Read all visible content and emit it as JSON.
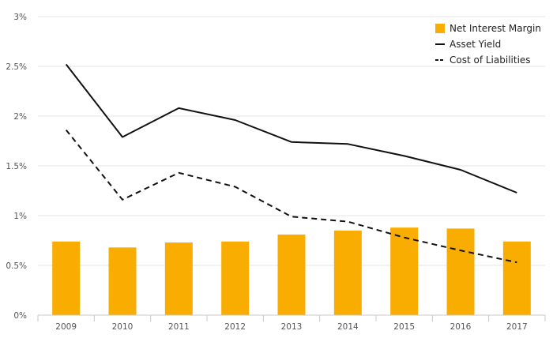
{
  "chart_data": {
    "type": "bar+line",
    "categories": [
      "2009",
      "2010",
      "2011",
      "2012",
      "2013",
      "2014",
      "2015",
      "2016",
      "2017"
    ],
    "ylim": [
      0,
      3
    ],
    "yticks": [
      0,
      0.5,
      1,
      1.5,
      2,
      2.5,
      3
    ],
    "ytick_labels": [
      "0%",
      "0.5%",
      "1%",
      "1.5%",
      "2%",
      "2.5%",
      "3%"
    ],
    "grid": true,
    "legend_position": "top-right",
    "series": [
      {
        "name": "Net Interest Margin",
        "kind": "bar",
        "color": "#f9ad00",
        "values": [
          0.74,
          0.68,
          0.73,
          0.74,
          0.81,
          0.85,
          0.88,
          0.87,
          0.74
        ]
      },
      {
        "name": "Asset Yield",
        "kind": "line",
        "style": "solid",
        "color": "#111111",
        "values": [
          2.52,
          1.79,
          2.08,
          1.96,
          1.74,
          1.72,
          1.6,
          1.46,
          1.23
        ]
      },
      {
        "name": "Cost of Liabilities",
        "kind": "line",
        "style": "dashed",
        "color": "#111111",
        "values": [
          1.86,
          1.16,
          1.43,
          1.29,
          0.99,
          0.94,
          0.78,
          0.65,
          0.53
        ]
      }
    ]
  }
}
